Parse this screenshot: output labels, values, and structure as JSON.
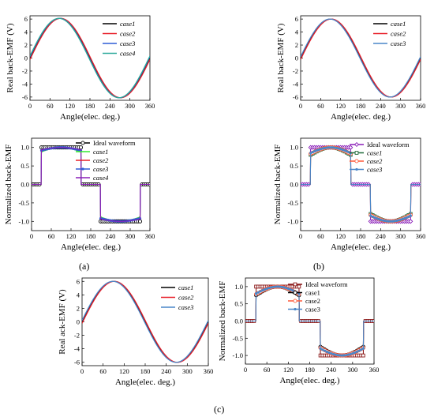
{
  "panel_labels": [
    "(a)",
    "(b)",
    "(c)"
  ],
  "colors": {
    "black": "#000000",
    "red": "#e8202a",
    "green": "#32e832",
    "blue": "#2f5dd6",
    "purple": "#8a1fb8",
    "teal": "#2aa89a",
    "steel": "#4a86c8",
    "darkgreen": "#1f6b3a",
    "brown": "#8c1a1a",
    "orange": "#ff5a3a"
  },
  "chart_data": [
    {
      "id": "a-emf",
      "type": "line",
      "xlabel": "Angle(elec. deg.)",
      "ylabel": "Real back-EMF (V)",
      "xlim": [
        0,
        360
      ],
      "ylim": [
        -6.5,
        6.5
      ],
      "xticks": [
        0,
        60,
        120,
        180,
        240,
        300,
        360
      ],
      "yticks": [
        -6,
        -4,
        -2,
        0,
        2,
        4,
        6
      ],
      "series": [
        {
          "name": "case1",
          "italic": true,
          "color": "black",
          "kind": "sine",
          "amp": 6.1,
          "phase": 0
        },
        {
          "name": "case2",
          "italic": true,
          "color": "red",
          "kind": "sine",
          "amp": 6.1,
          "phase": -2
        },
        {
          "name": "case3",
          "italic": true,
          "color": "blue",
          "kind": "sine",
          "amp": 6.1,
          "phase": 2
        },
        {
          "name": "case4",
          "italic": true,
          "color": "teal",
          "kind": "sine",
          "amp": 6.1,
          "phase": 3
        }
      ],
      "legend": "top-right"
    },
    {
      "id": "b-emf",
      "type": "line",
      "xlabel": "Angle(elec. deg.)",
      "ylabel": "Real back-EMF (V)",
      "xlim": [
        0,
        360
      ],
      "ylim": [
        -6.5,
        6.5
      ],
      "xticks": [
        0,
        60,
        120,
        180,
        240,
        300,
        360
      ],
      "yticks": [
        -6,
        -4,
        -2,
        0,
        2,
        4,
        6
      ],
      "series": [
        {
          "name": "case1",
          "italic": true,
          "color": "black",
          "kind": "sine",
          "amp": 6.0,
          "phase": 0
        },
        {
          "name": "case2",
          "italic": true,
          "color": "red",
          "kind": "sine",
          "amp": 6.0,
          "phase": -2
        },
        {
          "name": "case3",
          "italic": true,
          "color": "steel",
          "kind": "sine",
          "amp": 6.0,
          "phase": 2
        }
      ],
      "legend": "top-right"
    },
    {
      "id": "c-emf",
      "type": "line",
      "xlabel": "Angle(elec. deg.)",
      "ylabel": "Real ack-EMF (V)",
      "xlim": [
        0,
        360
      ],
      "ylim": [
        -6.5,
        6.5
      ],
      "xticks": [
        0,
        60,
        120,
        180,
        240,
        300,
        360
      ],
      "yticks": [
        -6,
        -4,
        -2,
        0,
        2,
        4,
        6
      ],
      "series": [
        {
          "name": "case1",
          "italic": true,
          "color": "black",
          "kind": "sine",
          "amp": 6.0,
          "phase": 0
        },
        {
          "name": "case2",
          "italic": true,
          "color": "red",
          "kind": "sine",
          "amp": 6.0,
          "phase": -2
        },
        {
          "name": "case3",
          "italic": true,
          "color": "steel",
          "kind": "sine",
          "amp": 6.0,
          "phase": 2
        }
      ],
      "legend": "top-right"
    },
    {
      "id": "a-norm",
      "type": "line",
      "xlabel": "Angle(elec. deg.)",
      "ylabel": "Normalized back-EMF",
      "xlim": [
        0,
        360
      ],
      "ylim": [
        -1.25,
        1.25
      ],
      "xticks": [
        0,
        60,
        120,
        180,
        240,
        300,
        360
      ],
      "yticks": [
        -1.0,
        -0.5,
        0.0,
        0.5,
        1.0
      ],
      "series": [
        {
          "name": "Ideal waveform",
          "italic": false,
          "color": "black",
          "kind": "ideal",
          "edges": [
            30,
            150,
            210,
            330
          ],
          "marker": "circle"
        },
        {
          "name": "case1",
          "italic": true,
          "color": "green",
          "kind": "dome",
          "edges": [
            30,
            150,
            210,
            330
          ],
          "dip": 0.12
        },
        {
          "name": "case2",
          "italic": true,
          "color": "red",
          "kind": "dome",
          "edges": [
            30,
            150,
            210,
            330
          ],
          "dip": 0.1
        },
        {
          "name": "case3",
          "italic": true,
          "color": "blue",
          "kind": "dome",
          "edges": [
            30,
            150,
            210,
            330
          ],
          "dip": 0.08,
          "marker": "dot"
        },
        {
          "name": "case4",
          "italic": true,
          "color": "purple",
          "kind": "dome",
          "edges": [
            30,
            150,
            210,
            330
          ],
          "dip": 0.06
        }
      ],
      "legend": "top-right"
    },
    {
      "id": "b-norm",
      "type": "line",
      "xlabel": "Angle(elec. deg.)",
      "ylabel": "Normalized back-EMF",
      "xlim": [
        0,
        360
      ],
      "ylim": [
        -1.25,
        1.25
      ],
      "xticks": [
        0,
        60,
        120,
        180,
        240,
        300,
        360
      ],
      "yticks": [
        -1.0,
        -0.5,
        0.0,
        0.5,
        1.0
      ],
      "series": [
        {
          "name": "Ideal waveform",
          "italic": false,
          "color": "purple",
          "kind": "ideal",
          "edges": [
            30,
            150,
            210,
            330
          ],
          "marker": "diamond"
        },
        {
          "name": "case1",
          "italic": true,
          "color": "darkgreen",
          "kind": "dome",
          "edges": [
            30,
            150,
            210,
            330
          ],
          "dip": 0.2,
          "marker": "square"
        },
        {
          "name": "case2",
          "italic": true,
          "color": "orange",
          "kind": "dome",
          "edges": [
            30,
            150,
            210,
            330
          ],
          "dip": 0.17,
          "marker": "circle"
        },
        {
          "name": "case3",
          "italic": true,
          "color": "steel",
          "kind": "dome",
          "edges": [
            30,
            150,
            210,
            330
          ],
          "dip": 0.15,
          "marker": "dot"
        }
      ],
      "legend": "top-right"
    },
    {
      "id": "c-norm",
      "type": "line",
      "xlabel": "Angle(elec. deg.)",
      "ylabel": "Normalized back-EMF",
      "xlim": [
        0,
        360
      ],
      "ylim": [
        -1.25,
        1.25
      ],
      "xticks": [
        0,
        60,
        120,
        180,
        240,
        300,
        360
      ],
      "yticks": [
        -1.0,
        -0.5,
        0.0,
        0.5,
        1.0
      ],
      "series": [
        {
          "name": "Ideal waveform",
          "italic": false,
          "color": "brown",
          "kind": "ideal",
          "edges": [
            30,
            150,
            210,
            330
          ],
          "marker": "square"
        },
        {
          "name": "case1",
          "italic": false,
          "color": "black",
          "kind": "dome",
          "edges": [
            30,
            150,
            210,
            330
          ],
          "dip": 0.25,
          "marker": "circle"
        },
        {
          "name": "case2",
          "italic": false,
          "color": "orange",
          "kind": "dome",
          "edges": [
            30,
            150,
            210,
            330
          ],
          "dip": 0.22,
          "marker": "circle"
        },
        {
          "name": "case3",
          "italic": false,
          "color": "steel",
          "kind": "dome",
          "edges": [
            30,
            150,
            210,
            330
          ],
          "dip": 0.2,
          "marker": "dot"
        }
      ],
      "legend": "top-right"
    }
  ]
}
